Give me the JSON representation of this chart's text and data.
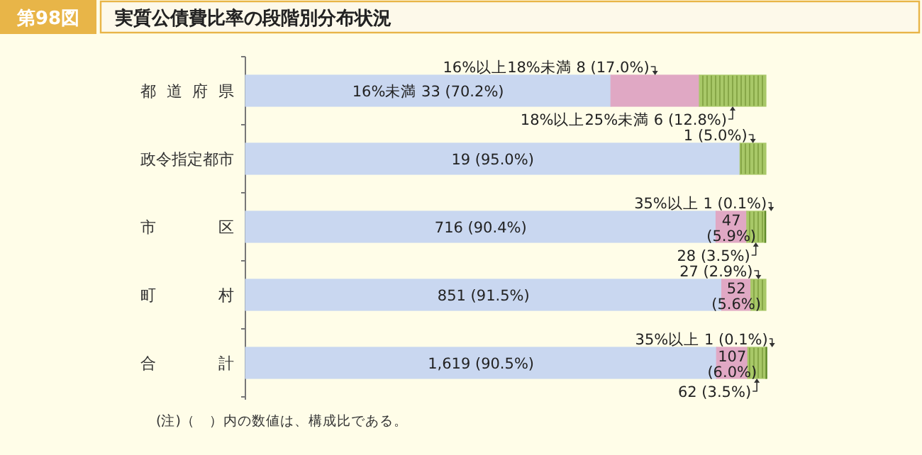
{
  "chart_data": {
    "type": "bar",
    "title": "実質公債費比率の段階別分布状況",
    "subtitle": "第98図",
    "orientation": "horizontal",
    "stacked": true,
    "xlim": [
      0,
      100
    ],
    "tick_labels": "y",
    "annotations": [
      "(注)（　）内の数値は、構成比である。"
    ],
    "categories": [
      "都道府県",
      "政令指定都市",
      "市区",
      "町村",
      "合計"
    ],
    "series": [
      {
        "color": "#c9d7f0",
        "values": [
          70.2,
          95.0,
          90.4,
          91.5,
          90.5
        ],
        "value_labels": [
          "16%未満 33 (70.2%)",
          "19 (95.0%)",
          "716 (90.4%)",
          "851 (91.5%)",
          "1,619 (90.5%)"
        ]
      },
      {
        "color": "#e0a8c4",
        "values": [
          17.0,
          null,
          5.9,
          5.6,
          6.0
        ],
        "value_labels": [
          "16%以上18%未満 8 (17.0%)",
          null,
          "47 (5.9%)",
          "52 (5.6%)",
          "107 (6.0%)"
        ]
      },
      {
        "color": "#a8c868",
        "values": [
          12.8,
          5.0,
          3.5,
          2.9,
          3.5
        ],
        "value_labels": [
          "18%以上25%未満 6 (12.8%)",
          "1 (5.0%)",
          "28 (3.5%)",
          "27 (2.9%)",
          "62 (3.5%)"
        ]
      },
      {
        "color": "#5f8a2a",
        "values": [
          null,
          null,
          0.1,
          null,
          0.1
        ],
        "value_labels": [
          null,
          null,
          "35%以上 1 (0.1%)",
          null,
          "35%以上 1 (0.1%)"
        ]
      }
    ]
  }
}
